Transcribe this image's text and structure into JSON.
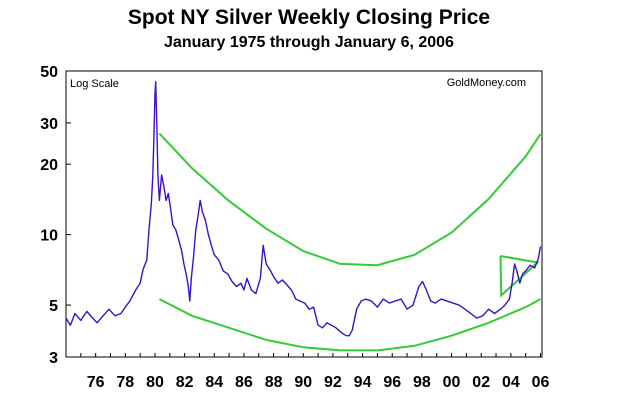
{
  "chart_data": {
    "type": "line",
    "title": "Spot NY Silver Weekly Closing Price",
    "subtitle": "January 1975 through January 6, 2006",
    "scale_note": "Log Scale",
    "source": "GoldMoney.com",
    "xlabel": "",
    "ylabel": "",
    "y_scale": "log",
    "ylim": [
      3,
      50
    ],
    "xlim": [
      1974.0,
      2006.1
    ],
    "y_ticks": [
      3,
      5,
      10,
      20,
      30,
      50
    ],
    "x_tick_labels": [
      "76",
      "78",
      "80",
      "82",
      "84",
      "86",
      "88",
      "90",
      "92",
      "94",
      "96",
      "98",
      "00",
      "02",
      "04",
      "06"
    ],
    "grid": false,
    "colors": {
      "series": "#3b12c8",
      "trend": "#33cc33"
    },
    "series": [
      {
        "x": [
          1974.0,
          1974.3,
          1974.6,
          1975.0,
          1975.4,
          1975.8,
          1976.1,
          1976.5,
          1976.9,
          1977.3,
          1977.7,
          1978.0,
          1978.3,
          1978.7,
          1979.0,
          1979.2,
          1979.45,
          1979.6,
          1979.75,
          1979.85,
          1979.92,
          1980.0,
          1980.05,
          1980.12,
          1980.2,
          1980.3,
          1980.45,
          1980.6,
          1980.75,
          1980.9,
          1981.05,
          1981.2,
          1981.4,
          1981.6,
          1981.8,
          1981.95,
          1982.1,
          1982.25,
          1982.35,
          1982.45,
          1982.6,
          1982.75,
          1982.9,
          1983.05,
          1983.2,
          1983.4,
          1983.6,
          1983.8,
          1984.0,
          1984.3,
          1984.6,
          1984.9,
          1985.2,
          1985.5,
          1985.8,
          1986.0,
          1986.2,
          1986.5,
          1986.8,
          1987.1,
          1987.3,
          1987.5,
          1987.8,
          1988.0,
          1988.3,
          1988.6,
          1988.9,
          1989.2,
          1989.5,
          1989.8,
          1990.1,
          1990.4,
          1990.7,
          1991.0,
          1991.3,
          1991.6,
          1991.9,
          1992.2,
          1992.4,
          1992.6,
          1992.9,
          1993.1,
          1993.3,
          1993.6,
          1993.9,
          1994.2,
          1994.6,
          1995.0,
          1995.4,
          1995.8,
          1996.2,
          1996.6,
          1997.0,
          1997.4,
          1997.8,
          1998.05,
          1998.3,
          1998.6,
          1998.9,
          1999.3,
          1999.7,
          2000.1,
          2000.5,
          2000.9,
          2001.3,
          2001.7,
          2002.1,
          2002.5,
          2002.9,
          2003.3,
          2003.6,
          2003.9,
          2004.1,
          2004.25,
          2004.4,
          2004.6,
          2004.8,
          2005.0,
          2005.3,
          2005.6,
          2005.85,
          2006.0
        ],
        "y": [
          4.4,
          4.1,
          4.6,
          4.3,
          4.7,
          4.4,
          4.2,
          4.5,
          4.8,
          4.5,
          4.6,
          4.9,
          5.2,
          5.8,
          6.2,
          7.1,
          7.8,
          10.5,
          13.5,
          17.5,
          25.0,
          40.0,
          45.0,
          30.0,
          18.0,
          14.0,
          18.0,
          16.0,
          14.0,
          15.0,
          13.0,
          11.0,
          10.5,
          9.5,
          8.5,
          7.5,
          6.8,
          6.0,
          5.2,
          6.5,
          8.0,
          10.5,
          12.0,
          14.0,
          12.5,
          11.5,
          10.0,
          9.0,
          8.2,
          7.8,
          7.0,
          6.8,
          6.3,
          6.0,
          6.2,
          5.8,
          6.5,
          5.8,
          5.6,
          6.5,
          9.0,
          7.5,
          7.0,
          6.6,
          6.2,
          6.4,
          6.1,
          5.8,
          5.3,
          5.2,
          5.1,
          4.8,
          4.9,
          4.1,
          4.0,
          4.2,
          4.1,
          4.0,
          3.9,
          3.8,
          3.7,
          3.7,
          3.9,
          4.8,
          5.2,
          5.3,
          5.2,
          4.9,
          5.3,
          5.1,
          5.2,
          5.3,
          4.8,
          5.0,
          6.0,
          6.3,
          5.8,
          5.2,
          5.1,
          5.3,
          5.2,
          5.1,
          5.0,
          4.8,
          4.6,
          4.4,
          4.5,
          4.8,
          4.6,
          4.8,
          5.0,
          5.3,
          6.3,
          7.5,
          7.0,
          6.2,
          6.8,
          7.0,
          7.4,
          7.2,
          7.9,
          8.9
        ]
      },
      {
        "name": "",
        "x": [
          1980.3,
          1982.5,
          1985.0,
          1987.5,
          1990.0,
          1992.5,
          1995.0,
          1997.5,
          2000.0,
          2002.5,
          2005.0,
          2006.0
        ],
        "y": [
          27.0,
          19.2,
          13.9,
          10.6,
          8.5,
          7.5,
          7.4,
          8.2,
          10.2,
          14.2,
          21.6,
          26.9
        ]
      },
      {
        "name": "",
        "x": [
          1980.3,
          1982.5,
          1985.0,
          1987.5,
          1990.0,
          1992.5,
          1995.0,
          1997.5,
          2000.0,
          2002.5,
          2005.0,
          2006.0
        ],
        "y": [
          5.3,
          4.5,
          4.0,
          3.55,
          3.3,
          3.2,
          3.2,
          3.35,
          3.7,
          4.2,
          4.9,
          5.3
        ]
      },
      {
        "name": "",
        "x": [
          2003.3,
          2005.8,
          2003.35,
          2003.3
        ],
        "y": [
          8.1,
          7.6,
          5.5,
          8.1
        ]
      }
    ]
  }
}
